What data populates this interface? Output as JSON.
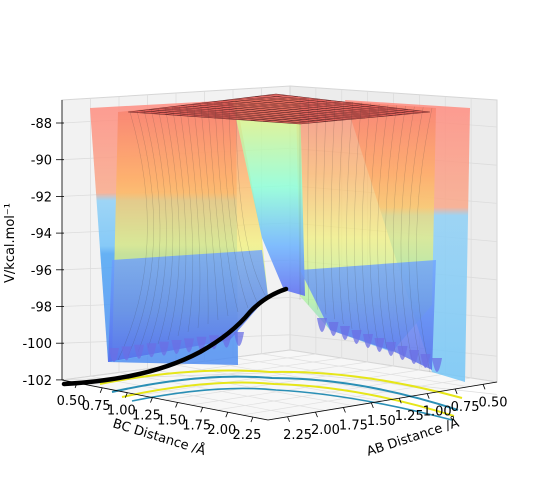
{
  "chart_data": {
    "type": "surface3d",
    "title": "",
    "zlabel": "V/kcal.mol⁻¹",
    "xlabel": "BC Distance /Å",
    "ylabel": "AB Distance /Å",
    "z_ticks": [
      "-88",
      "-90",
      "-92",
      "-94",
      "-96",
      "-98",
      "-100",
      "-102"
    ],
    "z_range": [
      -103.5,
      -87
    ],
    "bc_ticks": [
      "0.50",
      "0.75",
      "1.00",
      "1.25",
      "1.50",
      "1.75",
      "2.00",
      "2.25"
    ],
    "ab_ticks": [
      "0.50",
      "0.75",
      "1.00",
      "1.25",
      "1.50",
      "1.75",
      "2.00",
      "2.25"
    ],
    "colormap": [
      "#ff8a7a",
      "#ffb060",
      "#f6f27a",
      "#7cffd0",
      "#5fb8ff",
      "#5a6cf0"
    ],
    "trajectory_color": "#000000",
    "contour_colors": [
      "#e6e619",
      "#2a8fb5"
    ],
    "grid": true
  }
}
